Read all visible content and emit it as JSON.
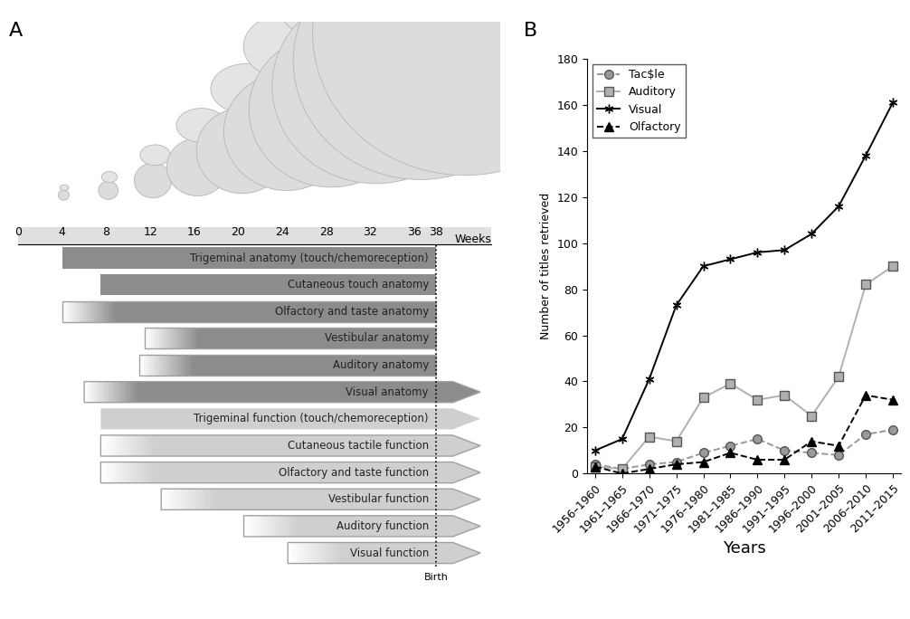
{
  "panel_labels": [
    "A",
    "B"
  ],
  "chart_data": [
    {
      "type": "range_bar",
      "orientation": "horizontal",
      "x_label": "Weeks",
      "xlim": [
        0,
        43
      ],
      "xticks": [
        0,
        4,
        8,
        12,
        16,
        20,
        24,
        28,
        32,
        36,
        38
      ],
      "annotations": [
        {
          "x": 38,
          "text": "Birth"
        }
      ],
      "series": [
        {
          "name": "Trigeminal anatomy (touch/chemoreception)",
          "start": 4,
          "end": 38,
          "color": "#8c8c8c"
        },
        {
          "name": "Cutaneous touch anatomy",
          "start": 7.5,
          "end": 38,
          "color": "#8c8c8c"
        },
        {
          "name": "Olfactory and taste anatomy",
          "start": 4,
          "end": 38,
          "color": [
            "#ffffff",
            "#8c8c8c"
          ]
        },
        {
          "name": "Vestibular anatomy",
          "start": 11.5,
          "end": 38,
          "color": [
            "#ffffff",
            "#8c8c8c"
          ]
        },
        {
          "name": "Auditory anatomy",
          "start": 11,
          "end": 38,
          "color": [
            "#ffffff",
            "#8c8c8c"
          ]
        },
        {
          "name": "Visual anatomy",
          "start": 6,
          "end": 42,
          "color": [
            "#ffffff",
            "#8c8c8c"
          ],
          "marker": "arrow"
        },
        {
          "name": "Trigeminal function (touch/chemoreception)",
          "start": 7.5,
          "end": 42,
          "color": "#cfcfcf",
          "marker": "arrow"
        },
        {
          "name": "Cutaneous tactile function",
          "start": 7.5,
          "end": 42,
          "color": [
            "#ffffff",
            "#cfcfcf"
          ],
          "marker": "arrow"
        },
        {
          "name": "Olfactory and taste function",
          "start": 7.5,
          "end": 42,
          "color": [
            "#ffffff",
            "#cfcfcf"
          ],
          "marker": "arrow"
        },
        {
          "name": "Vestibular function",
          "start": 13,
          "end": 42,
          "color": [
            "#ffffff",
            "#cfcfcf"
          ],
          "marker": "arrow"
        },
        {
          "name": "Auditory function",
          "start": 20.5,
          "end": 42,
          "color": [
            "#ffffff",
            "#cfcfcf"
          ],
          "marker": "arrow"
        },
        {
          "name": "Visual function",
          "start": 24.5,
          "end": 42,
          "color": [
            "#ffffff",
            "#cfcfcf"
          ],
          "marker": "arrow"
        }
      ]
    },
    {
      "type": "line",
      "x_label": "Years",
      "y_label": "Number of titles retrieved",
      "categories": [
        "1956–1960",
        "1961–1965",
        "1966–1970",
        "1971–1975",
        "1976–1980",
        "1981–1985",
        "1986–1990",
        "1991–1995",
        "1996–2000",
        "2001–2005",
        "2006–2010",
        "2011–2015"
      ],
      "ylim": [
        0,
        180
      ],
      "yticks": [
        0,
        20,
        40,
        60,
        80,
        100,
        120,
        140,
        160,
        180
      ],
      "legend": "upper left",
      "series": [
        {
          "name": "Tac$le",
          "color": "#999999",
          "marker": "circle",
          "line_style": "dashed",
          "values": [
            4,
            2,
            4,
            5,
            9,
            12,
            15,
            10,
            9,
            8,
            17,
            19
          ]
        },
        {
          "name": "Auditory",
          "color": "#b0b0b0",
          "marker": "square",
          "line_style": "solid",
          "values": [
            3,
            2,
            16,
            14,
            33,
            39,
            32,
            34,
            25,
            42,
            82,
            90
          ]
        },
        {
          "name": "Visual",
          "color": "#000000",
          "marker": "asterisk",
          "line_style": "solid",
          "values": [
            10,
            15,
            41,
            73,
            90,
            93,
            96,
            97,
            104,
            116,
            138,
            161
          ]
        },
        {
          "name": "Olfactory",
          "color": "#000000",
          "marker": "triangle",
          "line_style": "dashed",
          "values": [
            3,
            0,
            2,
            4,
            5,
            9,
            6,
            6,
            14,
            12,
            34,
            32
          ]
        }
      ]
    }
  ]
}
